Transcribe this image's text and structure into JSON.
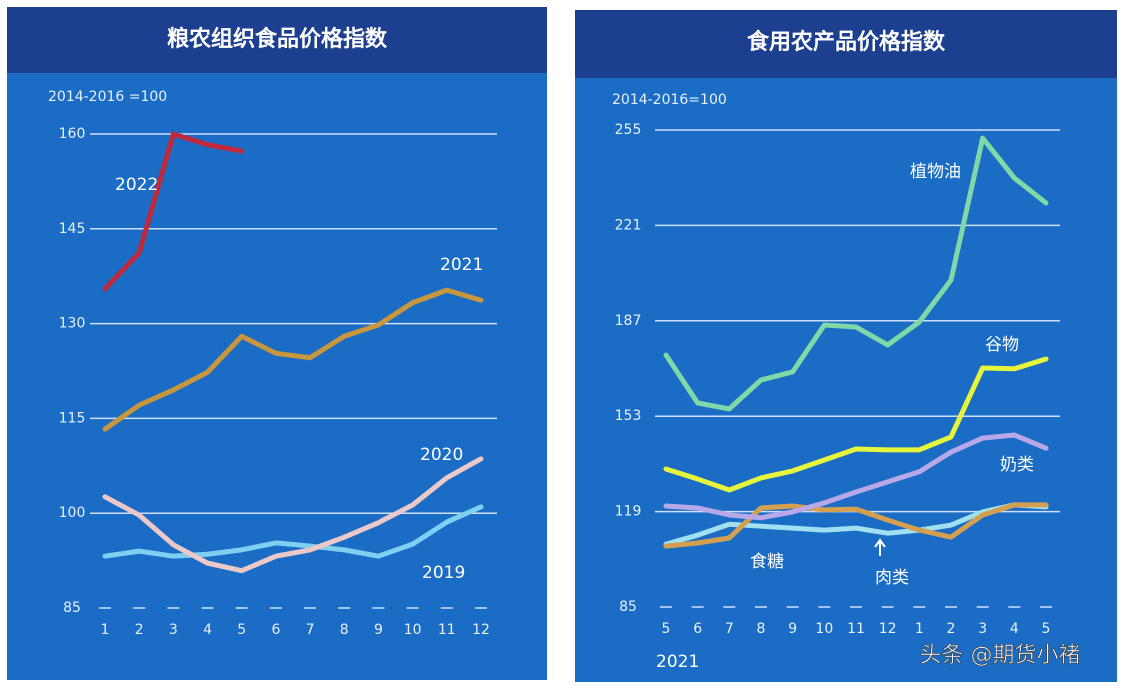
{
  "chart_data": [
    {
      "type": "line",
      "title": "粮农组织食品价格指数",
      "subtitle": "2014-2016 =100",
      "categories": [
        "1",
        "2",
        "3",
        "4",
        "5",
        "6",
        "7",
        "8",
        "9",
        "10",
        "11",
        "12"
      ],
      "ylim": [
        85,
        160
      ],
      "yticks": [
        85,
        100,
        115,
        130,
        145,
        160
      ],
      "grid": true,
      "series": [
        {
          "name": "2022",
          "color": "#c0283c",
          "values": [
            135.5,
            141.2,
            160,
            158.3,
            157.3,
            null,
            null,
            null,
            null,
            null,
            null,
            null
          ]
        },
        {
          "name": "2021",
          "color": "#c8963c",
          "values": [
            113.3,
            117.1,
            119.5,
            122.3,
            128,
            125.3,
            124.6,
            128,
            129.8,
            133.3,
            135.3,
            133.7
          ]
        },
        {
          "name": "2020",
          "color": "#ecc8c8",
          "values": [
            102.6,
            99.7,
            95,
            92.1,
            90.9,
            93.2,
            94.2,
            96.2,
            98.5,
            101.3,
            105.6,
            108.6
          ]
        },
        {
          "name": "2019",
          "color": "#7fd0f0",
          "values": [
            93.2,
            94,
            93.2,
            93.5,
            94.2,
            95.3,
            94.8,
            94.2,
            93.2,
            95.1,
            98.6,
            101
          ]
        }
      ]
    },
    {
      "type": "line",
      "title": "食用农产品价格指数",
      "subtitle": "2014-2016=100",
      "x_annotation": "2021",
      "categories": [
        "5",
        "6",
        "7",
        "8",
        "9",
        "10",
        "11",
        "12",
        "1",
        "2",
        "3",
        "4",
        "5"
      ],
      "ylim": [
        85,
        255
      ],
      "yticks": [
        85,
        119,
        153,
        187,
        221,
        255
      ],
      "grid": true,
      "series": [
        {
          "name": "植物油",
          "color": "#7fd8a8",
          "values": [
            174.8,
            157.7,
            155.6,
            165.9,
            168.8,
            185.5,
            184.8,
            178.4,
            186.6,
            201.5,
            252.1,
            237.9,
            229
          ]
        },
        {
          "name": "谷物",
          "color": "#e6f53c",
          "values": [
            134.2,
            130.6,
            126.7,
            131,
            133.5,
            137.4,
            141.3,
            141,
            141,
            145.6,
            170.2,
            169.9,
            173.4
          ]
        },
        {
          "name": "奶类",
          "color": "#b8a8e8",
          "values": [
            121,
            120.3,
            117.8,
            116.8,
            118.9,
            122.1,
            126,
            129.6,
            133.2,
            140.2,
            145.2,
            146.3,
            141.6
          ]
        },
        {
          "name": "食糖",
          "color": "#d4a050",
          "values": [
            106.7,
            107.8,
            109.6,
            120.3,
            121,
            119.6,
            119.9,
            116,
            112.4,
            109.9,
            117.8,
            121.4,
            121.4
          ]
        },
        {
          "name": "肉类",
          "color": "#a0e0f0",
          "values": [
            107.4,
            110.6,
            114.5,
            113.8,
            113.1,
            112.4,
            113.1,
            111.3,
            112.4,
            114.2,
            118.9,
            121.4,
            120.7
          ]
        }
      ]
    }
  ],
  "watermark": "头条 @期货小褚"
}
